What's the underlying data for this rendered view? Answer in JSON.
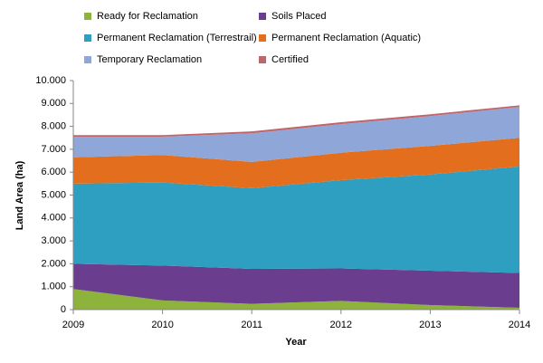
{
  "chart_data": {
    "type": "stacked_area",
    "x_label": "Year",
    "y_label": "Land Area (ha)",
    "categories": [
      "2009",
      "2010",
      "2011",
      "2012",
      "2013",
      "2014"
    ],
    "series": [
      {
        "name": "Ready for Reclamation",
        "color": "#8db33c",
        "values": [
          900,
          400,
          250,
          380,
          200,
          80
        ]
      },
      {
        "name": "Soils Placed",
        "color": "#6b3d8f",
        "values": [
          1100,
          1520,
          1530,
          1420,
          1500,
          1520
        ]
      },
      {
        "name": "Permanent Reclamation (Terrestrail)",
        "color": "#2e9fc0",
        "values": [
          3500,
          3630,
          3520,
          3850,
          4200,
          4650
        ]
      },
      {
        "name": "Permanent Reclamation (Aquatic)",
        "color": "#e36f1e",
        "values": [
          1150,
          1200,
          1150,
          1200,
          1250,
          1250
        ]
      },
      {
        "name": "Temporary Reclamation",
        "color": "#8ea6d8",
        "values": [
          900,
          800,
          1250,
          1250,
          1300,
          1350
        ]
      },
      {
        "name": "Certified",
        "color": "#c0666b",
        "values": [
          70,
          70,
          80,
          80,
          80,
          70
        ]
      }
    ],
    "ylim": [
      0,
      10000
    ],
    "yticks": [
      0,
      {
        "value": 1000,
        "label": "1.000"
      },
      {
        "value": 2000,
        "label": "2.000"
      },
      {
        "value": 3000,
        "label": "3.000"
      },
      {
        "value": 4000,
        "label": "4.000"
      },
      {
        "value": 5000,
        "label": "5.000"
      },
      {
        "value": 6000,
        "label": "6.000"
      },
      {
        "value": 7000,
        "label": "7.000"
      },
      {
        "value": 8000,
        "label": "8.000"
      },
      {
        "value": 9000,
        "label": "9.000"
      },
      {
        "value": 10000,
        "label": "10.000"
      }
    ],
    "grid": false
  }
}
